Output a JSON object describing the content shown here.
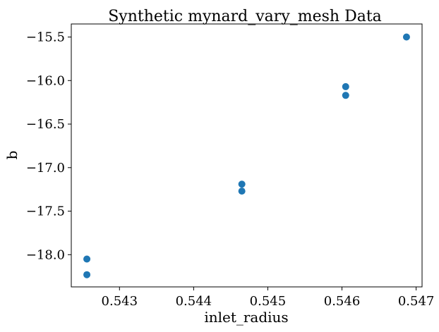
{
  "chart_data": {
    "type": "scatter",
    "title": "Synthetic mynard_vary_mesh Data",
    "xlabel": "inlet_radius",
    "ylabel": "b",
    "xlim": [
      0.54235,
      0.54708
    ],
    "ylim": [
      -18.37,
      -15.35
    ],
    "xticks": [
      0.543,
      0.544,
      0.545,
      0.546,
      0.547
    ],
    "xtick_labels": [
      "0.543",
      "0.544",
      "0.545",
      "0.546",
      "0.547"
    ],
    "yticks": [
      -18.0,
      -17.5,
      -17.0,
      -16.5,
      -16.0,
      -15.5
    ],
    "ytick_labels": [
      "−18.0",
      "−17.5",
      "−17.0",
      "−16.5",
      "−16.0",
      "−15.5"
    ],
    "grid": false,
    "color": "#1f77b4",
    "points": [
      {
        "x": 0.54256,
        "y": -18.05
      },
      {
        "x": 0.54256,
        "y": -18.23
      },
      {
        "x": 0.54465,
        "y": -17.19
      },
      {
        "x": 0.54465,
        "y": -17.27
      },
      {
        "x": 0.54605,
        "y": -16.07
      },
      {
        "x": 0.54605,
        "y": -16.17
      },
      {
        "x": 0.54687,
        "y": -15.5
      }
    ]
  }
}
